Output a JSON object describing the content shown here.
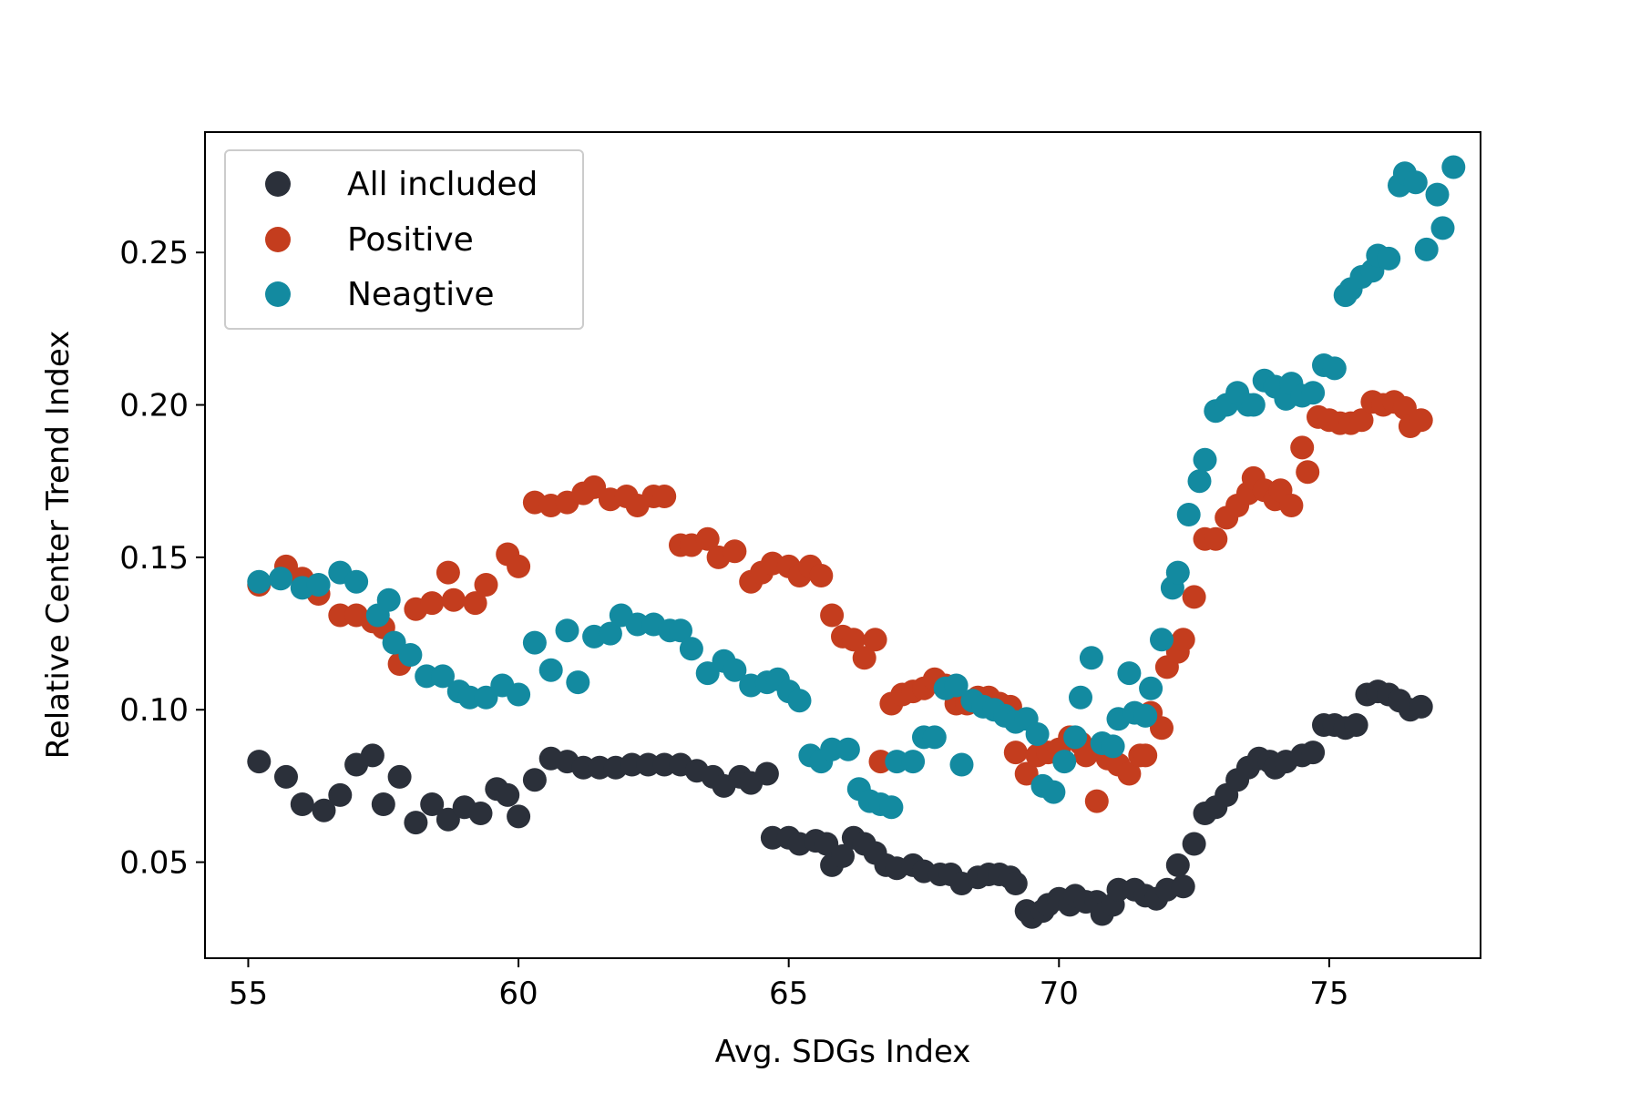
{
  "chart_data": {
    "type": "scatter",
    "title": "",
    "xlabel": "Avg. SDGs Index",
    "ylabel": "Relative Center Trend Index",
    "xlim": [
      54.2,
      77.8
    ],
    "ylim": [
      0.0185,
      0.2895
    ],
    "xticks": [
      55,
      60,
      65,
      70,
      75
    ],
    "xtick_labels": [
      "55",
      "60",
      "65",
      "70",
      "75"
    ],
    "yticks": [
      0.05,
      0.1,
      0.15,
      0.2,
      0.25
    ],
    "ytick_labels": [
      "0.05",
      "0.10",
      "0.15",
      "0.20",
      "0.25"
    ],
    "grid": false,
    "legend_position": "top-left",
    "series": [
      {
        "name": "All included",
        "color": "#2b303a",
        "points": [
          [
            55.2,
            0.083
          ],
          [
            55.7,
            0.078
          ],
          [
            56.0,
            0.069
          ],
          [
            56.4,
            0.067
          ],
          [
            56.7,
            0.072
          ],
          [
            57.0,
            0.082
          ],
          [
            57.3,
            0.085
          ],
          [
            57.5,
            0.069
          ],
          [
            57.8,
            0.078
          ],
          [
            58.1,
            0.063
          ],
          [
            58.4,
            0.069
          ],
          [
            58.7,
            0.064
          ],
          [
            59.0,
            0.068
          ],
          [
            59.3,
            0.066
          ],
          [
            59.6,
            0.074
          ],
          [
            59.8,
            0.072
          ],
          [
            60.0,
            0.065
          ],
          [
            60.3,
            0.077
          ],
          [
            60.6,
            0.084
          ],
          [
            60.9,
            0.083
          ],
          [
            61.2,
            0.081
          ],
          [
            61.5,
            0.081
          ],
          [
            61.8,
            0.081
          ],
          [
            62.1,
            0.082
          ],
          [
            62.4,
            0.082
          ],
          [
            62.7,
            0.082
          ],
          [
            63.0,
            0.082
          ],
          [
            63.3,
            0.08
          ],
          [
            63.6,
            0.078
          ],
          [
            63.8,
            0.075
          ],
          [
            64.1,
            0.078
          ],
          [
            64.3,
            0.076
          ],
          [
            64.6,
            0.079
          ],
          [
            64.7,
            0.058
          ],
          [
            65.0,
            0.058
          ],
          [
            65.2,
            0.056
          ],
          [
            65.5,
            0.057
          ],
          [
            65.7,
            0.056
          ],
          [
            65.8,
            0.049
          ],
          [
            66.0,
            0.052
          ],
          [
            66.2,
            0.058
          ],
          [
            66.4,
            0.056
          ],
          [
            66.6,
            0.053
          ],
          [
            66.8,
            0.049
          ],
          [
            67.0,
            0.048
          ],
          [
            67.3,
            0.049
          ],
          [
            67.5,
            0.047
          ],
          [
            67.8,
            0.046
          ],
          [
            68.0,
            0.046
          ],
          [
            68.2,
            0.043
          ],
          [
            68.5,
            0.045
          ],
          [
            68.7,
            0.046
          ],
          [
            68.9,
            0.046
          ],
          [
            69.1,
            0.045
          ],
          [
            69.2,
            0.043
          ],
          [
            69.4,
            0.034
          ],
          [
            69.5,
            0.032
          ],
          [
            69.7,
            0.034
          ],
          [
            69.8,
            0.036
          ],
          [
            70.0,
            0.038
          ],
          [
            70.2,
            0.036
          ],
          [
            70.3,
            0.039
          ],
          [
            70.5,
            0.037
          ],
          [
            70.7,
            0.037
          ],
          [
            70.8,
            0.033
          ],
          [
            71.0,
            0.036
          ],
          [
            71.1,
            0.041
          ],
          [
            71.4,
            0.041
          ],
          [
            71.6,
            0.039
          ],
          [
            71.8,
            0.038
          ],
          [
            72.0,
            0.041
          ],
          [
            72.2,
            0.049
          ],
          [
            72.3,
            0.042
          ],
          [
            72.5,
            0.056
          ],
          [
            72.7,
            0.066
          ],
          [
            72.9,
            0.068
          ],
          [
            73.1,
            0.072
          ],
          [
            73.3,
            0.077
          ],
          [
            73.5,
            0.081
          ],
          [
            73.7,
            0.084
          ],
          [
            73.9,
            0.083
          ],
          [
            74.0,
            0.081
          ],
          [
            74.2,
            0.083
          ],
          [
            74.5,
            0.085
          ],
          [
            74.7,
            0.086
          ],
          [
            74.9,
            0.095
          ],
          [
            75.1,
            0.095
          ],
          [
            75.3,
            0.094
          ],
          [
            75.5,
            0.095
          ],
          [
            75.7,
            0.105
          ],
          [
            75.9,
            0.106
          ],
          [
            76.1,
            0.105
          ],
          [
            76.3,
            0.103
          ],
          [
            76.5,
            0.1
          ],
          [
            76.7,
            0.101
          ]
        ]
      },
      {
        "name": "Positive",
        "color": "#c43d1e",
        "points": [
          [
            55.2,
            0.141
          ],
          [
            55.7,
            0.147
          ],
          [
            56.0,
            0.143
          ],
          [
            56.3,
            0.138
          ],
          [
            56.7,
            0.131
          ],
          [
            57.0,
            0.131
          ],
          [
            57.3,
            0.129
          ],
          [
            57.5,
            0.127
          ],
          [
            57.8,
            0.115
          ],
          [
            58.1,
            0.133
          ],
          [
            58.4,
            0.135
          ],
          [
            58.7,
            0.145
          ],
          [
            58.8,
            0.136
          ],
          [
            59.2,
            0.135
          ],
          [
            59.4,
            0.141
          ],
          [
            59.8,
            0.151
          ],
          [
            60.0,
            0.147
          ],
          [
            60.3,
            0.168
          ],
          [
            60.6,
            0.167
          ],
          [
            60.9,
            0.168
          ],
          [
            61.2,
            0.171
          ],
          [
            61.4,
            0.173
          ],
          [
            61.7,
            0.169
          ],
          [
            62.0,
            0.17
          ],
          [
            62.2,
            0.167
          ],
          [
            62.5,
            0.17
          ],
          [
            62.7,
            0.17
          ],
          [
            63.0,
            0.154
          ],
          [
            63.2,
            0.154
          ],
          [
            63.5,
            0.156
          ],
          [
            63.7,
            0.15
          ],
          [
            64.0,
            0.152
          ],
          [
            64.3,
            0.142
          ],
          [
            64.5,
            0.145
          ],
          [
            64.7,
            0.148
          ],
          [
            65.0,
            0.147
          ],
          [
            65.2,
            0.144
          ],
          [
            65.4,
            0.147
          ],
          [
            65.6,
            0.144
          ],
          [
            65.8,
            0.131
          ],
          [
            66.0,
            0.124
          ],
          [
            66.2,
            0.123
          ],
          [
            66.4,
            0.117
          ],
          [
            66.6,
            0.123
          ],
          [
            66.7,
            0.083
          ],
          [
            66.9,
            0.102
          ],
          [
            67.1,
            0.105
          ],
          [
            67.3,
            0.106
          ],
          [
            67.5,
            0.107
          ],
          [
            67.7,
            0.11
          ],
          [
            67.9,
            0.108
          ],
          [
            68.1,
            0.102
          ],
          [
            68.3,
            0.102
          ],
          [
            68.5,
            0.104
          ],
          [
            68.7,
            0.104
          ],
          [
            68.9,
            0.102
          ],
          [
            69.1,
            0.101
          ],
          [
            69.2,
            0.086
          ],
          [
            69.4,
            0.079
          ],
          [
            69.6,
            0.085
          ],
          [
            69.8,
            0.086
          ],
          [
            70.0,
            0.087
          ],
          [
            70.2,
            0.091
          ],
          [
            70.4,
            0.089
          ],
          [
            70.5,
            0.085
          ],
          [
            70.7,
            0.07
          ],
          [
            70.9,
            0.084
          ],
          [
            71.1,
            0.082
          ],
          [
            71.3,
            0.079
          ],
          [
            71.5,
            0.085
          ],
          [
            71.6,
            0.085
          ],
          [
            71.7,
            0.099
          ],
          [
            71.9,
            0.094
          ],
          [
            72.0,
            0.114
          ],
          [
            72.2,
            0.119
          ],
          [
            72.3,
            0.123
          ],
          [
            72.5,
            0.137
          ],
          [
            72.7,
            0.156
          ],
          [
            72.9,
            0.156
          ],
          [
            73.1,
            0.163
          ],
          [
            73.3,
            0.167
          ],
          [
            73.5,
            0.171
          ],
          [
            73.6,
            0.176
          ],
          [
            73.8,
            0.172
          ],
          [
            74.0,
            0.169
          ],
          [
            74.1,
            0.172
          ],
          [
            74.3,
            0.167
          ],
          [
            74.5,
            0.186
          ],
          [
            74.6,
            0.178
          ],
          [
            74.8,
            0.196
          ],
          [
            75.0,
            0.195
          ],
          [
            75.2,
            0.194
          ],
          [
            75.4,
            0.194
          ],
          [
            75.6,
            0.195
          ],
          [
            75.8,
            0.201
          ],
          [
            76.0,
            0.2
          ],
          [
            76.2,
            0.201
          ],
          [
            76.4,
            0.199
          ],
          [
            76.5,
            0.193
          ],
          [
            76.7,
            0.195
          ]
        ]
      },
      {
        "name": "Neagtive",
        "color": "#138aa0",
        "points": [
          [
            55.2,
            0.142
          ],
          [
            55.6,
            0.143
          ],
          [
            56.0,
            0.14
          ],
          [
            56.3,
            0.141
          ],
          [
            56.7,
            0.145
          ],
          [
            57.0,
            0.142
          ],
          [
            57.4,
            0.131
          ],
          [
            57.6,
            0.136
          ],
          [
            57.7,
            0.122
          ],
          [
            58.0,
            0.118
          ],
          [
            58.3,
            0.111
          ],
          [
            58.6,
            0.111
          ],
          [
            58.9,
            0.106
          ],
          [
            59.1,
            0.104
          ],
          [
            59.4,
            0.104
          ],
          [
            59.7,
            0.108
          ],
          [
            60.0,
            0.105
          ],
          [
            60.3,
            0.122
          ],
          [
            60.6,
            0.113
          ],
          [
            60.9,
            0.126
          ],
          [
            61.1,
            0.109
          ],
          [
            61.4,
            0.124
          ],
          [
            61.7,
            0.125
          ],
          [
            61.9,
            0.131
          ],
          [
            62.2,
            0.128
          ],
          [
            62.5,
            0.128
          ],
          [
            62.8,
            0.126
          ],
          [
            63.0,
            0.126
          ],
          [
            63.2,
            0.12
          ],
          [
            63.5,
            0.112
          ],
          [
            63.8,
            0.116
          ],
          [
            64.0,
            0.113
          ],
          [
            64.3,
            0.108
          ],
          [
            64.6,
            0.109
          ],
          [
            64.8,
            0.11
          ],
          [
            65.0,
            0.106
          ],
          [
            65.2,
            0.103
          ],
          [
            65.4,
            0.085
          ],
          [
            65.6,
            0.083
          ],
          [
            65.8,
            0.087
          ],
          [
            66.1,
            0.087
          ],
          [
            66.3,
            0.074
          ],
          [
            66.5,
            0.07
          ],
          [
            66.7,
            0.069
          ],
          [
            66.9,
            0.068
          ],
          [
            67.0,
            0.083
          ],
          [
            67.3,
            0.083
          ],
          [
            67.5,
            0.091
          ],
          [
            67.7,
            0.091
          ],
          [
            67.9,
            0.107
          ],
          [
            68.1,
            0.108
          ],
          [
            68.2,
            0.082
          ],
          [
            68.4,
            0.103
          ],
          [
            68.6,
            0.101
          ],
          [
            68.8,
            0.1
          ],
          [
            69.0,
            0.098
          ],
          [
            69.2,
            0.096
          ],
          [
            69.4,
            0.097
          ],
          [
            69.6,
            0.092
          ],
          [
            69.7,
            0.075
          ],
          [
            69.9,
            0.073
          ],
          [
            70.1,
            0.083
          ],
          [
            70.3,
            0.091
          ],
          [
            70.4,
            0.104
          ],
          [
            70.6,
            0.117
          ],
          [
            70.8,
            0.089
          ],
          [
            71.0,
            0.088
          ],
          [
            71.1,
            0.097
          ],
          [
            71.3,
            0.112
          ],
          [
            71.4,
            0.099
          ],
          [
            71.6,
            0.098
          ],
          [
            71.7,
            0.107
          ],
          [
            71.9,
            0.123
          ],
          [
            72.1,
            0.14
          ],
          [
            72.2,
            0.145
          ],
          [
            72.4,
            0.164
          ],
          [
            72.6,
            0.175
          ],
          [
            72.7,
            0.182
          ],
          [
            72.9,
            0.198
          ],
          [
            73.1,
            0.2
          ],
          [
            73.3,
            0.204
          ],
          [
            73.5,
            0.2
          ],
          [
            73.6,
            0.2
          ],
          [
            73.8,
            0.208
          ],
          [
            74.0,
            0.206
          ],
          [
            74.2,
            0.202
          ],
          [
            74.3,
            0.207
          ],
          [
            74.5,
            0.203
          ],
          [
            74.7,
            0.204
          ],
          [
            74.9,
            0.213
          ],
          [
            75.1,
            0.212
          ],
          [
            75.3,
            0.236
          ],
          [
            75.4,
            0.238
          ],
          [
            75.6,
            0.242
          ],
          [
            75.8,
            0.244
          ],
          [
            75.9,
            0.249
          ],
          [
            76.1,
            0.248
          ],
          [
            76.3,
            0.272
          ],
          [
            76.4,
            0.276
          ],
          [
            76.6,
            0.273
          ],
          [
            76.8,
            0.251
          ],
          [
            77.0,
            0.269
          ],
          [
            77.1,
            0.258
          ],
          [
            77.3,
            0.278
          ]
        ]
      }
    ]
  }
}
